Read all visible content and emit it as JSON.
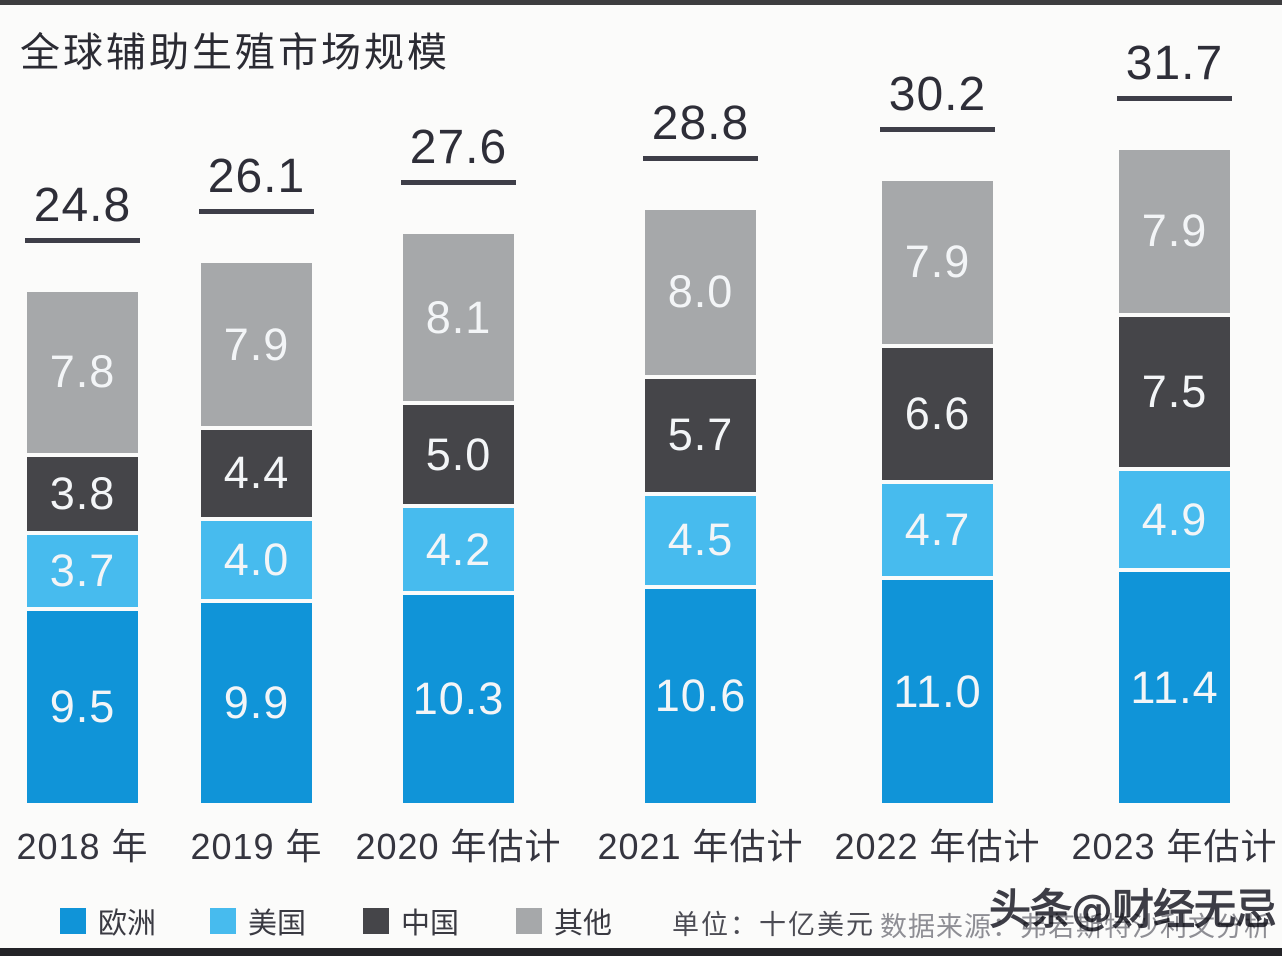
{
  "title": "全球辅助生殖市场规模",
  "chart_data": {
    "type": "bar",
    "stacked": true,
    "orientation": "vertical",
    "grid": false,
    "y_axis_shown": false,
    "legend_position": "bottom",
    "categories": [
      "2018 年",
      "2019 年",
      "2020 年估计",
      "2021 年估计",
      "2022 年估计",
      "2023 年估计"
    ],
    "totals": [
      "24.8",
      "26.1",
      "27.6",
      "28.8",
      "30.2",
      "31.7"
    ],
    "series": [
      {
        "name": "欧洲",
        "color": "#1094d8",
        "values": [
          "9.5",
          "9.9",
          "10.3",
          "10.6",
          "11.0",
          "11.4"
        ]
      },
      {
        "name": "美国",
        "color": "#47bbee",
        "values": [
          "3.7",
          "4.0",
          "4.2",
          "4.5",
          "4.7",
          "4.9"
        ]
      },
      {
        "name": "中国",
        "color": "#454549",
        "values": [
          "3.8",
          "4.4",
          "5.0",
          "5.7",
          "6.6",
          "7.5"
        ]
      },
      {
        "name": "其他",
        "color": "#a6a8aa",
        "values": [
          "7.8",
          "7.9",
          "8.1",
          "8.0",
          "7.9",
          "7.9"
        ]
      }
    ],
    "title": "全球辅助生殖市场规模",
    "unit_note": "单位：十亿美元",
    "source_note": "数据来源：弗若斯特沙利文分析"
  },
  "footer": {
    "unit_label": "单位：十亿美元",
    "source_label": "数据来源：弗若斯特沙利文分析",
    "watermark": "头条@财经无忌"
  },
  "colors": {
    "background": "#fbfbfa",
    "europe_blue": "#1094d8",
    "usa_light_blue": "#47bbee",
    "china_dark_gray": "#454549",
    "other_gray": "#a6a8aa",
    "text_dark": "#2e2e38",
    "segment_label_white": "#f3f5f7",
    "source_gray": "#8e8e94"
  }
}
